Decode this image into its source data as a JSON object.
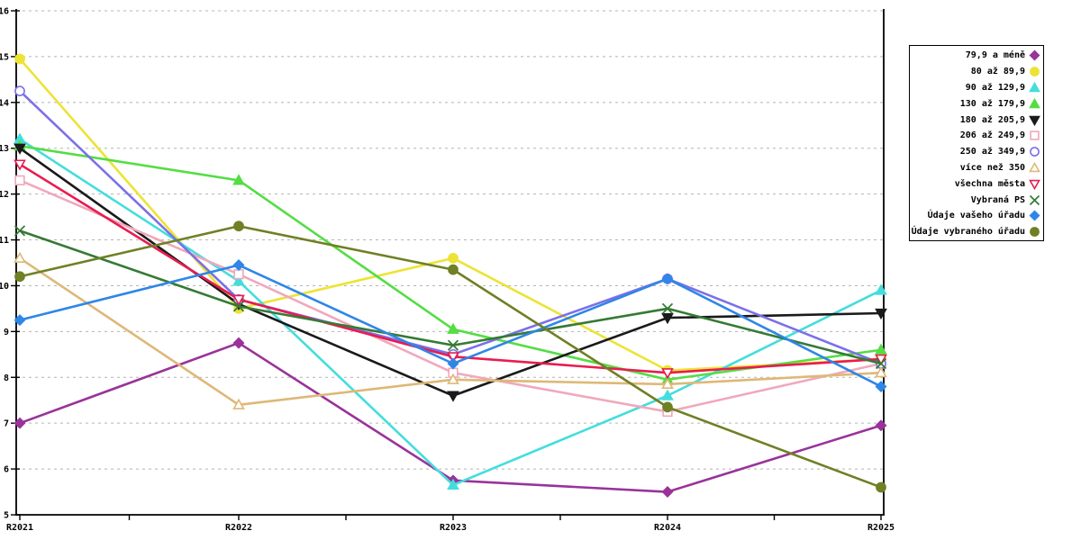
{
  "chart_data": {
    "type": "line",
    "title": "",
    "xlabel": "",
    "ylabel": "",
    "categories": [
      "R2021",
      "R2022",
      "R2023",
      "R2024",
      "R2025"
    ],
    "ylim": [
      5,
      16
    ],
    "yticks": [
      5,
      6,
      7,
      8,
      9,
      10,
      11,
      12,
      13,
      14,
      15,
      16
    ],
    "grid": "horizontal-dashed",
    "gridline_color": "#b4b4b4",
    "axis_color": "#000000",
    "legend_position": "right",
    "series": [
      {
        "name": "79,9 a méně",
        "color": "#993399",
        "marker": "diamond",
        "filled": true,
        "values": [
          7.0,
          8.75,
          5.75,
          5.5,
          6.95
        ]
      },
      {
        "name": "80 až 89,9",
        "color": "#ede335",
        "marker": "circle",
        "filled": true,
        "values": [
          14.95,
          9.5,
          10.6,
          8.15,
          8.4
        ]
      },
      {
        "name": "90 až 129,9",
        "color": "#44dddd",
        "marker": "triangle-up",
        "filled": true,
        "values": [
          13.2,
          10.1,
          5.65,
          7.6,
          9.9
        ]
      },
      {
        "name": "130 až 179,9",
        "color": "#55dd44",
        "marker": "triangle-up",
        "filled": true,
        "values": [
          13.05,
          12.3,
          9.05,
          7.95,
          8.6
        ]
      },
      {
        "name": "180 až 205,9",
        "color": "#1a1a1a",
        "marker": "triangle-down",
        "filled": true,
        "values": [
          13.0,
          9.6,
          7.6,
          9.3,
          9.4
        ]
      },
      {
        "name": "206 až 249,9",
        "color": "#f0a8bc",
        "marker": "square",
        "filled": false,
        "values": [
          12.3,
          10.25,
          8.1,
          7.25,
          8.3
        ]
      },
      {
        "name": "250 až 349,9",
        "color": "#7b70e8",
        "marker": "circle",
        "filled": false,
        "values": [
          14.25,
          9.7,
          8.5,
          10.15,
          8.3
        ]
      },
      {
        "name": "více než 350",
        "color": "#deb877",
        "marker": "triangle-up",
        "filled": false,
        "values": [
          10.6,
          7.4,
          7.95,
          7.85,
          8.1
        ]
      },
      {
        "name": "všechna města",
        "color": "#e81c50",
        "marker": "triangle-down",
        "filled": false,
        "values": [
          12.65,
          9.7,
          8.45,
          8.1,
          8.4
        ]
      },
      {
        "name": "Vybraná PS",
        "color": "#357a35",
        "marker": "x-cross",
        "filled": false,
        "values": [
          11.2,
          9.55,
          8.7,
          9.5,
          8.3
        ]
      },
      {
        "name": "Údaje vašeho úřadu",
        "color": "#2e86e8",
        "marker": "diamond",
        "filled": true,
        "values": [
          9.25,
          10.45,
          8.3,
          10.15,
          7.8
        ]
      },
      {
        "name": "Údaje vybraného úřadu",
        "color": "#6f8025",
        "marker": "circle",
        "filled": true,
        "values": [
          10.2,
          11.3,
          10.35,
          7.35,
          5.6
        ]
      }
    ]
  }
}
